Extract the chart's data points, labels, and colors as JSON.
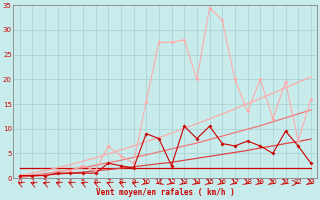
{
  "xlabel": "Vent moyen/en rafales ( km/h )",
  "background_color": "#c8ecec",
  "grid_color": "#a8d0d0",
  "x": [
    0,
    1,
    2,
    3,
    4,
    5,
    6,
    7,
    8,
    9,
    10,
    11,
    12,
    13,
    14,
    15,
    16,
    17,
    18,
    19,
    20,
    21,
    22,
    23
  ],
  "xlim": [
    -0.5,
    23.5
  ],
  "ylim": [
    0,
    35
  ],
  "yticks": [
    0,
    5,
    10,
    15,
    20,
    25,
    30,
    35
  ],
  "line1_color": "#cc0000",
  "line1_y": [
    2.0,
    2.0,
    2.0,
    2.0,
    2.0,
    2.0,
    2.0,
    2.0,
    2.0,
    2.0,
    2.0,
    2.0,
    2.0,
    2.0,
    2.0,
    2.0,
    2.0,
    2.0,
    2.0,
    2.0,
    2.0,
    2.0,
    2.0,
    2.0
  ],
  "line2_color": "#dd4444",
  "line2_y": [
    0.2,
    0.4,
    0.6,
    0.8,
    1.0,
    1.2,
    1.5,
    1.7,
    2.0,
    2.3,
    2.6,
    2.9,
    3.2,
    3.6,
    4.0,
    4.4,
    4.8,
    5.2,
    5.6,
    6.1,
    6.5,
    7.0,
    7.4,
    7.9
  ],
  "line3_color": "#ee7777",
  "line3_y": [
    0.3,
    0.6,
    0.9,
    1.3,
    1.7,
    2.1,
    2.6,
    3.1,
    3.6,
    4.2,
    4.7,
    5.3,
    5.9,
    6.5,
    7.1,
    7.8,
    8.5,
    9.2,
    9.9,
    10.6,
    11.4,
    12.2,
    13.0,
    13.8
  ],
  "line4_color": "#ffaaaa",
  "line4_y": [
    0.5,
    1.0,
    1.5,
    2.1,
    2.7,
    3.4,
    4.1,
    4.9,
    5.7,
    6.5,
    7.4,
    8.2,
    9.1,
    10.1,
    11.0,
    12.0,
    13.0,
    14.0,
    15.1,
    16.1,
    17.2,
    18.3,
    19.4,
    20.5
  ],
  "data_dark_color": "#cc0000",
  "data_dark_y": [
    0.5,
    0.5,
    0.5,
    1.0,
    1.0,
    1.0,
    1.0,
    3.0,
    2.5,
    2.0,
    9.0,
    8.0,
    2.5,
    10.5,
    8.0,
    10.5,
    7.0,
    6.5,
    7.5,
    6.5,
    5.0,
    9.5,
    6.5,
    3.0
  ],
  "data_light_color": "#ffaaaa",
  "data_light_y": [
    0.5,
    0.5,
    0.5,
    1.5,
    1.5,
    2.5,
    1.5,
    6.5,
    4.5,
    3.0,
    15.5,
    27.5,
    27.5,
    28.0,
    20.0,
    34.5,
    32.0,
    20.0,
    13.5,
    20.0,
    12.0,
    19.5,
    7.5,
    16.0
  ]
}
